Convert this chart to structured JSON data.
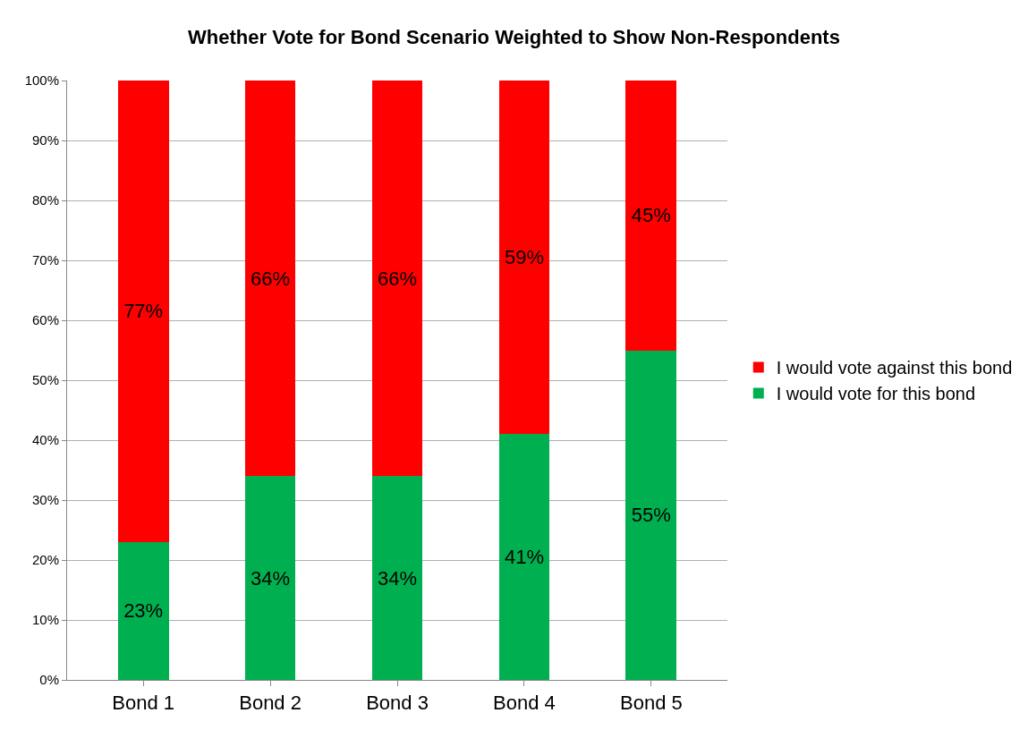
{
  "chart_data": {
    "type": "bar",
    "title": "Whether Vote for Bond Scenario Weighted to Show Non-Respondents",
    "categories": [
      "Bond 1",
      "Bond 2",
      "Bond 3",
      "Bond 4",
      "Bond 5"
    ],
    "stacked": true,
    "series": [
      {
        "name": "I would vote for this bond",
        "color": "#00b050",
        "values": [
          23,
          34,
          34,
          41,
          55
        ],
        "value_labels": [
          "23%",
          "34%",
          "34%",
          "41%",
          "55%"
        ]
      },
      {
        "name": "I would vote against this bond",
        "color": "#ff0000",
        "values": [
          77,
          66,
          66,
          59,
          45
        ],
        "value_labels": [
          "77%",
          "66%",
          "66%",
          "59%",
          "45%"
        ]
      }
    ],
    "ylim": [
      0,
      100
    ],
    "yticks": [
      {
        "value": 0,
        "label": "0%"
      },
      {
        "value": 10,
        "label": "10%"
      },
      {
        "value": 20,
        "label": "20%"
      },
      {
        "value": 30,
        "label": "30%"
      },
      {
        "value": 40,
        "label": "40%"
      },
      {
        "value": 50,
        "label": "50%"
      },
      {
        "value": 60,
        "label": "60%"
      },
      {
        "value": 70,
        "label": "70%"
      },
      {
        "value": 80,
        "label": "80%"
      },
      {
        "value": 90,
        "label": "90%"
      },
      {
        "value": 100,
        "label": "100%"
      }
    ],
    "grid": "y",
    "legend": "right"
  }
}
